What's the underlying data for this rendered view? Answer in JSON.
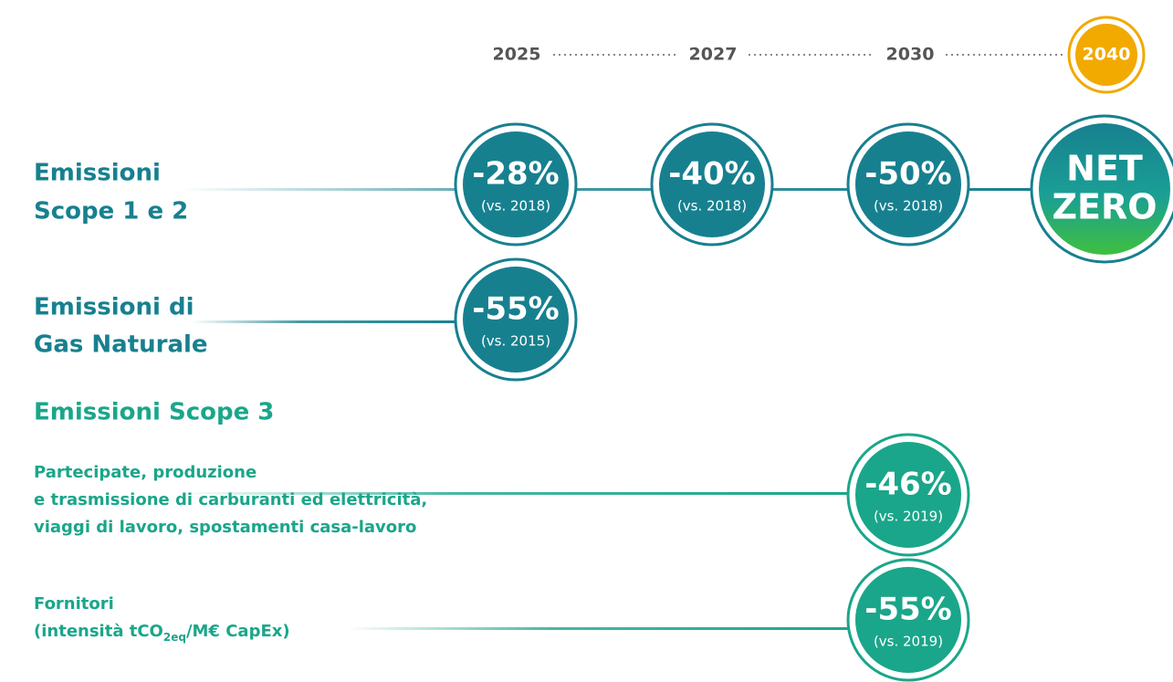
{
  "timeline": {
    "years": [
      "2025",
      "2027",
      "2030",
      "2040"
    ]
  },
  "scope12": {
    "label": [
      "Emissioni",
      "Scope 1 e 2"
    ],
    "targets": [
      {
        "value": "-28%",
        "baseline": "(vs. 2018)"
      },
      {
        "value": "-40%",
        "baseline": "(vs. 2018)"
      },
      {
        "value": "-50%",
        "baseline": "(vs. 2018)"
      }
    ],
    "final": [
      "NET",
      "ZERO"
    ]
  },
  "gas": {
    "label": [
      "Emissioni di",
      "Gas Naturale"
    ],
    "target": {
      "value": "-55%",
      "baseline": "(vs. 2015)"
    }
  },
  "scope3": {
    "title": "Emissioni Scope 3",
    "partecipate": {
      "label": [
        "Partecipate, produzione",
        "e trasmissione di carburanti ed elettricità,",
        "viaggi di lavoro, spostamenti casa-lavoro"
      ],
      "target": {
        "value": "-46%",
        "baseline": "(vs. 2019)"
      }
    },
    "fornitori": {
      "label": "Fornitori",
      "detail": [
        "(intensità tCO",
        "2eq",
        "/M€ CapEx)"
      ],
      "target": {
        "value": "-55%",
        "baseline": "(vs. 2019)"
      }
    }
  }
}
